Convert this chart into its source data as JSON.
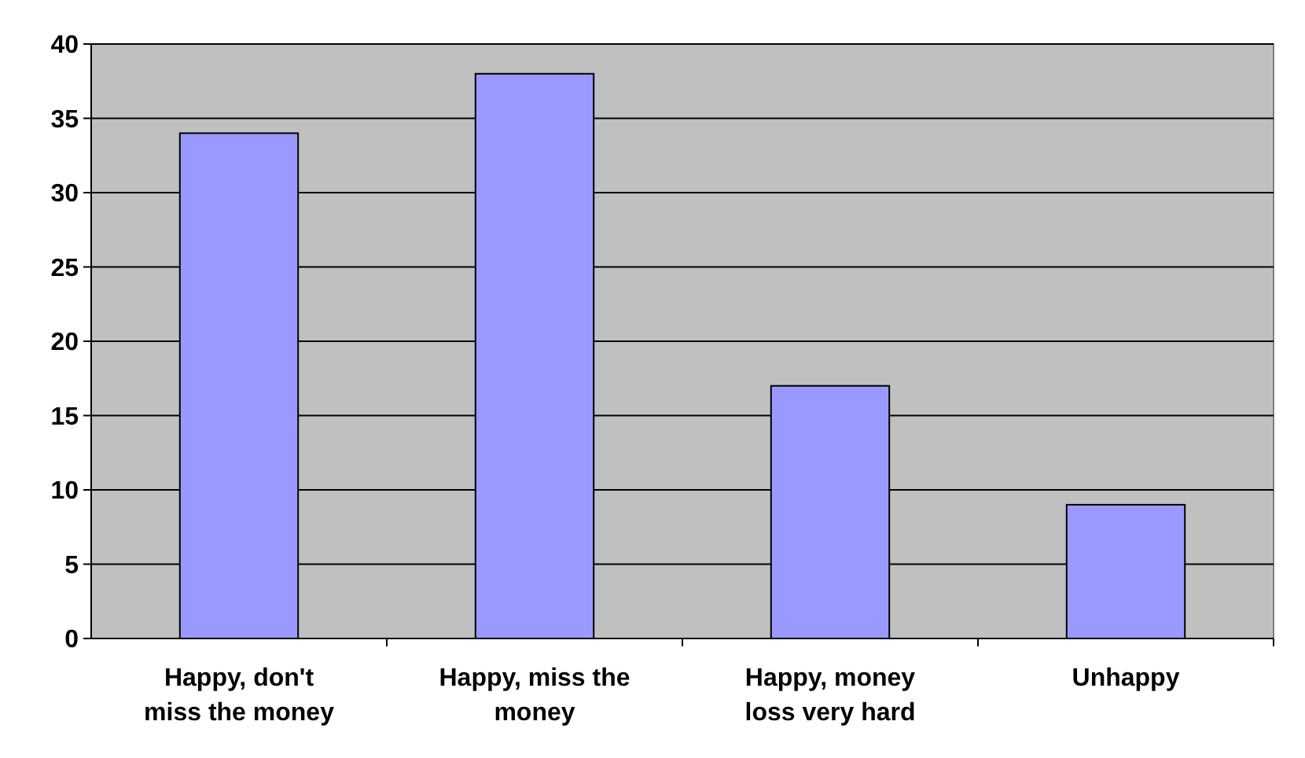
{
  "chart_data": {
    "type": "bar",
    "categories": [
      "Happy, don't miss the money",
      "Happy, miss the money",
      "Happy, money loss very hard",
      "Unhappy"
    ],
    "values": [
      34,
      38,
      17,
      9
    ],
    "color": "#9999ff",
    "ylim": [
      0,
      40
    ],
    "yticks": [
      0,
      5,
      10,
      15,
      20,
      25,
      30,
      35,
      40
    ],
    "grid": "y"
  }
}
